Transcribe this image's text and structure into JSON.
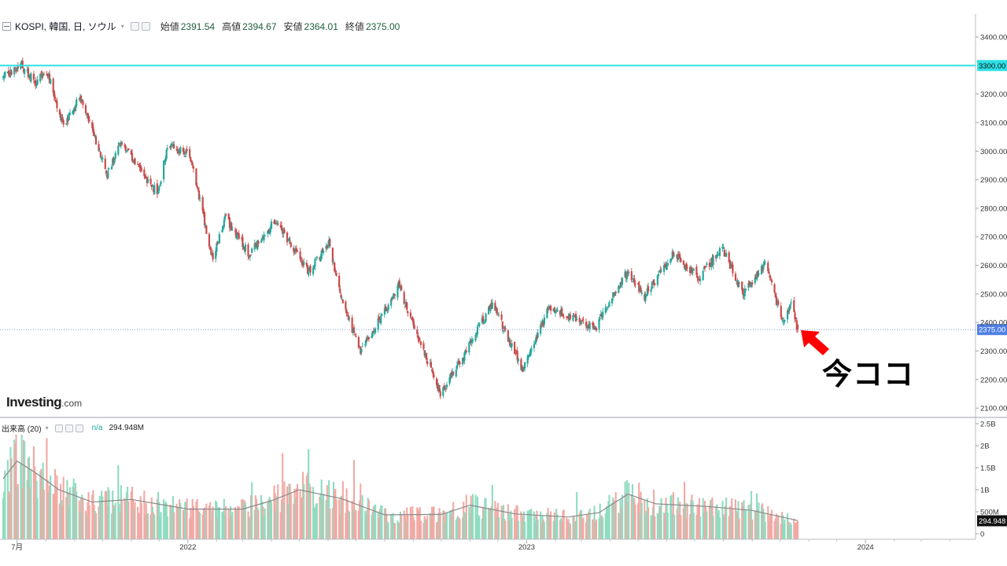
{
  "header": {
    "title": "KOSPI, 韓国, 日, ソウル",
    "ohlc": [
      {
        "label": "始値",
        "value": "2391.54"
      },
      {
        "label": "高値",
        "value": "2394.67"
      },
      {
        "label": "安値",
        "value": "2364.01"
      },
      {
        "label": "終値",
        "value": "2375.00"
      }
    ]
  },
  "volume_header": {
    "title": "出来高 (20)",
    "na": "n/a",
    "value": "294.948M"
  },
  "logo": {
    "main": "Investing",
    "suffix": ".com"
  },
  "annotation": "今ココ",
  "colors": {
    "up": "#26a69a",
    "down": "#c94a4a",
    "vol_up": "#8fdcc0",
    "vol_down": "#f2a9a4",
    "resistance": "#2de0e4",
    "last_price": "#4f7fe6",
    "arrow": "#ff0000"
  },
  "chart_data": [
    {
      "type": "candlestick",
      "series": [
        {
          "name": "KOSPI"
        }
      ],
      "x_ticks": [
        "7月",
        "2022",
        "2023",
        "2024"
      ],
      "y_ticks": [
        "2100.00",
        "2200.00",
        "2300.00",
        "2400.00",
        "2500.00",
        "2600.00",
        "2700.00",
        "2800.00",
        "2900.00",
        "3000.00",
        "3100.00",
        "3200.00",
        "3400.00"
      ],
      "ylim": [
        2070,
        3480
      ],
      "horizontal_lines": [
        {
          "value": 3300,
          "label": "3300.00"
        }
      ],
      "last_price": {
        "value": 2375,
        "label": "2375.00"
      },
      "close_path": [
        {
          "x": "2021-06-16",
          "y": 3260
        },
        {
          "x": "2021-07-06",
          "y": 3300
        },
        {
          "x": "2021-07-20",
          "y": 3240
        },
        {
          "x": "2021-08-02",
          "y": 3280
        },
        {
          "x": "2021-08-20",
          "y": 3090
        },
        {
          "x": "2021-09-07",
          "y": 3190
        },
        {
          "x": "2021-10-06",
          "y": 2920
        },
        {
          "x": "2021-10-20",
          "y": 3030
        },
        {
          "x": "2021-11-30",
          "y": 2850
        },
        {
          "x": "2021-12-10",
          "y": 3020
        },
        {
          "x": "2022-01-03",
          "y": 2990
        },
        {
          "x": "2022-01-28",
          "y": 2620
        },
        {
          "x": "2022-02-10",
          "y": 2770
        },
        {
          "x": "2022-03-08",
          "y": 2640
        },
        {
          "x": "2022-04-05",
          "y": 2760
        },
        {
          "x": "2022-05-11",
          "y": 2580
        },
        {
          "x": "2022-06-02",
          "y": 2680
        },
        {
          "x": "2022-06-13",
          "y": 2510
        },
        {
          "x": "2022-07-06",
          "y": 2290
        },
        {
          "x": "2022-08-16",
          "y": 2530
        },
        {
          "x": "2022-09-30",
          "y": 2150
        },
        {
          "x": "2022-10-28",
          "y": 2300
        },
        {
          "x": "2022-11-25",
          "y": 2470
        },
        {
          "x": "2022-12-28",
          "y": 2230
        },
        {
          "x": "2023-01-25",
          "y": 2450
        },
        {
          "x": "2023-03-16",
          "y": 2380
        },
        {
          "x": "2023-04-05",
          "y": 2500
        },
        {
          "x": "2023-04-20",
          "y": 2580
        },
        {
          "x": "2023-05-08",
          "y": 2490
        },
        {
          "x": "2023-06-07",
          "y": 2640
        },
        {
          "x": "2023-07-05",
          "y": 2560
        },
        {
          "x": "2023-07-31",
          "y": 2660
        },
        {
          "x": "2023-08-21",
          "y": 2500
        },
        {
          "x": "2023-09-15",
          "y": 2600
        },
        {
          "x": "2023-10-04",
          "y": 2400
        },
        {
          "x": "2023-10-13",
          "y": 2460
        },
        {
          "x": "2023-10-20",
          "y": 2375
        }
      ]
    },
    {
      "type": "bar",
      "title": "出来高 (20)",
      "y_ticks": [
        "2.5B",
        "2B",
        "1.5B",
        "1B",
        "500M",
        "0"
      ],
      "ylim": [
        0,
        2500
      ],
      "units": "M",
      "last_value": {
        "value": 294.948,
        "label": "294.948"
      },
      "ma_path": [
        {
          "x": "2021-06-16",
          "y": 1250
        },
        {
          "x": "2021-07-01",
          "y": 1650
        },
        {
          "x": "2021-07-20",
          "y": 1400
        },
        {
          "x": "2021-08-15",
          "y": 1000
        },
        {
          "x": "2021-09-20",
          "y": 720
        },
        {
          "x": "2021-11-01",
          "y": 780
        },
        {
          "x": "2022-01-01",
          "y": 560
        },
        {
          "x": "2022-03-01",
          "y": 560
        },
        {
          "x": "2022-04-01",
          "y": 750
        },
        {
          "x": "2022-05-01",
          "y": 1000
        },
        {
          "x": "2022-06-15",
          "y": 800
        },
        {
          "x": "2022-08-01",
          "y": 430
        },
        {
          "x": "2022-10-01",
          "y": 440
        },
        {
          "x": "2022-11-01",
          "y": 650
        },
        {
          "x": "2022-12-20",
          "y": 450
        },
        {
          "x": "2023-02-15",
          "y": 380
        },
        {
          "x": "2023-03-20",
          "y": 480
        },
        {
          "x": "2023-04-20",
          "y": 900
        },
        {
          "x": "2023-05-20",
          "y": 680
        },
        {
          "x": "2023-07-15",
          "y": 620
        },
        {
          "x": "2023-09-01",
          "y": 530
        },
        {
          "x": "2023-10-20",
          "y": 300
        }
      ]
    }
  ]
}
